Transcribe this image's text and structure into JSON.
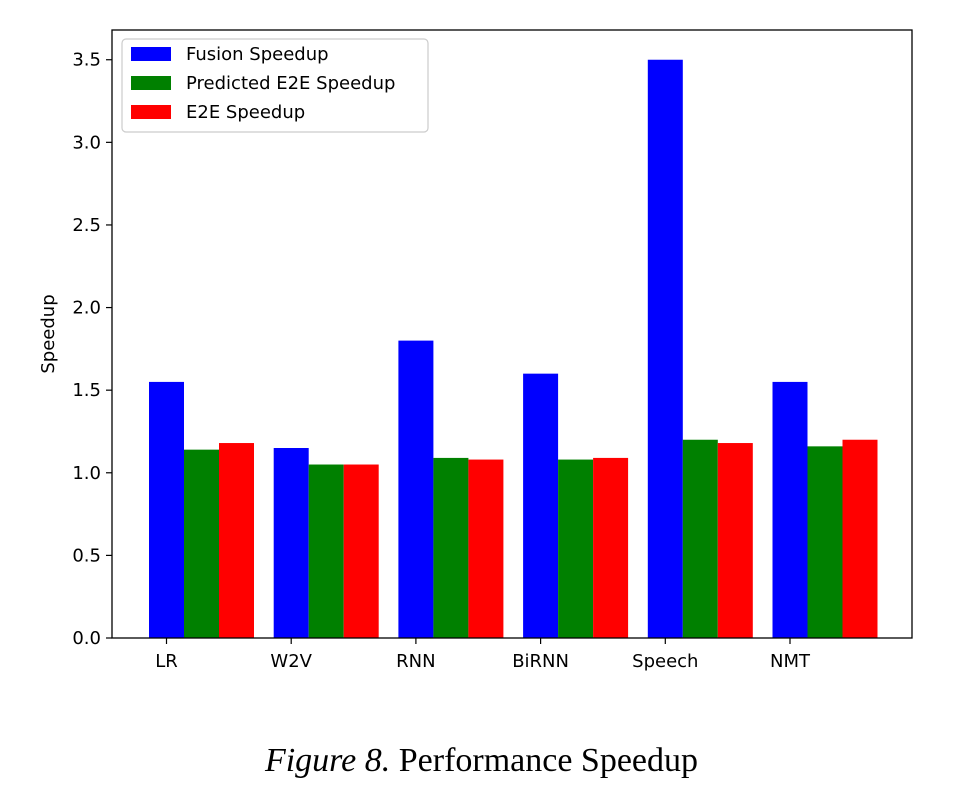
{
  "chart_data": {
    "type": "bar",
    "categories": [
      "LR",
      "W2V",
      "RNN",
      "BiRNN",
      "Speech",
      "NMT"
    ],
    "series": [
      {
        "name": "Fusion Speedup",
        "color": "#0000ff",
        "values": [
          1.55,
          1.15,
          1.8,
          1.6,
          3.5,
          1.55
        ]
      },
      {
        "name": "Predicted E2E Speedup",
        "color": "#008000",
        "values": [
          1.14,
          1.05,
          1.09,
          1.08,
          1.2,
          1.16
        ]
      },
      {
        "name": "E2E Speedup",
        "color": "#ff0000",
        "values": [
          1.18,
          1.05,
          1.08,
          1.09,
          1.18,
          1.2
        ]
      }
    ],
    "xlabel": "",
    "ylabel": "Speedup",
    "ylim": [
      0,
      3.68
    ],
    "yticks": [
      "0.0",
      "0.5",
      "1.0",
      "1.5",
      "2.0",
      "2.5",
      "3.0",
      "3.5"
    ],
    "grid": false,
    "legend": "top-left"
  },
  "caption": {
    "figure_label": "Figure 8.",
    "text": "Performance Speedup"
  }
}
